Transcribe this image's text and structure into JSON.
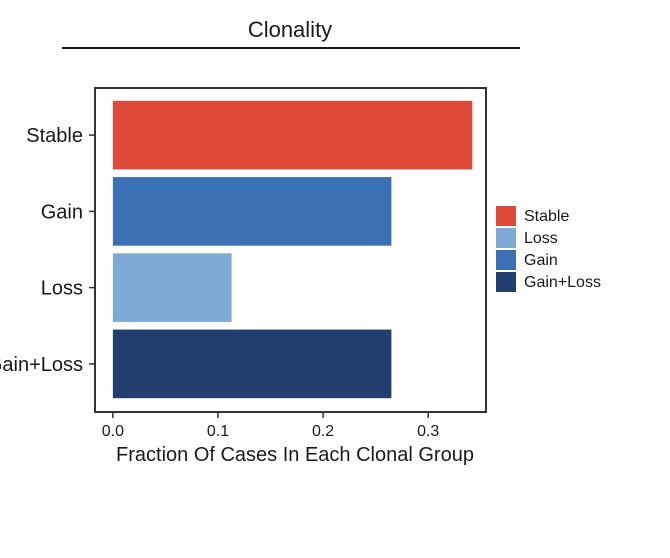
{
  "chart_data": {
    "type": "bar",
    "orientation": "horizontal",
    "title": "Clonality",
    "xlabel": "Fraction Of Cases In Each Clonal Group",
    "ylabel": "",
    "categories": [
      "Stable",
      "Gain",
      "Loss",
      "Gain+Loss"
    ],
    "values": [
      0.342,
      0.265,
      0.113,
      0.265
    ],
    "colors": [
      "#dd4a3a",
      "#3b70b5",
      "#7eabd5",
      "#223e6e"
    ],
    "xlim": [
      -0.017,
      0.355
    ],
    "xticks": [
      0.0,
      0.1,
      0.2,
      0.3
    ],
    "xtick_labels": [
      "0.0",
      "0.1",
      "0.2",
      "0.3"
    ],
    "grid": false,
    "legend": {
      "placement": "right",
      "entries": [
        {
          "label": "Stable",
          "color": "#dd4a3a"
        },
        {
          "label": "Loss",
          "color": "#7eabd5"
        },
        {
          "label": "Gain",
          "color": "#3b70b5"
        },
        {
          "label": "Gain+Loss",
          "color": "#223e6e"
        }
      ]
    }
  }
}
